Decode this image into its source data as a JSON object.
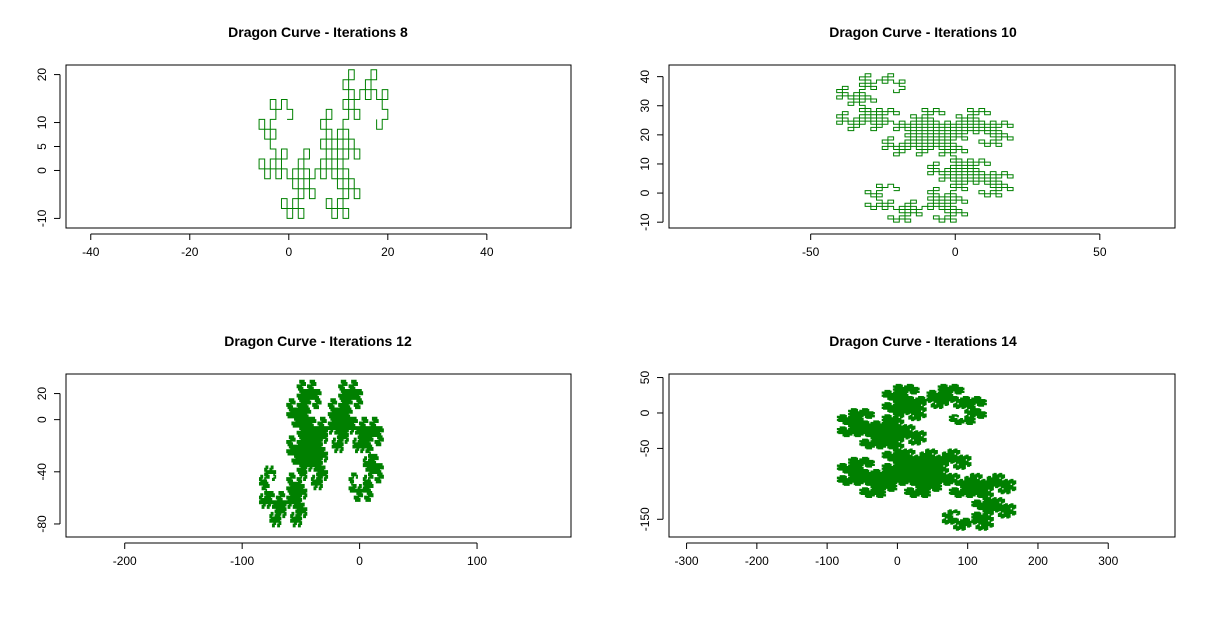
{
  "chart_data": [
    {
      "type": "line",
      "title": "Dragon Curve - Iterations 8",
      "iterations": 8,
      "color": "#008000",
      "xlim": [
        -45,
        57
      ],
      "ylim": [
        -12,
        22
      ],
      "xticks": [
        -40,
        -20,
        0,
        20,
        40
      ],
      "yticks": [
        -10,
        0,
        5,
        10,
        20
      ],
      "grid": false,
      "legend": "none"
    },
    {
      "type": "line",
      "title": "Dragon Curve - Iterations 10",
      "iterations": 10,
      "color": "#008000",
      "xlim": [
        -99,
        76
      ],
      "ylim": [
        -12,
        44
      ],
      "xticks": [
        -50,
        0,
        50
      ],
      "yticks": [
        -10,
        0,
        10,
        20,
        30,
        40
      ],
      "grid": false,
      "legend": "none"
    },
    {
      "type": "line",
      "title": "Dragon Curve - Iterations 12",
      "iterations": 12,
      "color": "#008000",
      "xlim": [
        -250,
        180
      ],
      "ylim": [
        -90,
        35
      ],
      "xticks": [
        -200,
        -100,
        0,
        100
      ],
      "yticks": [
        -80,
        -40,
        0,
        20
      ],
      "grid": false,
      "legend": "none"
    },
    {
      "type": "line",
      "title": "Dragon Curve - Iterations 14",
      "iterations": 14,
      "color": "#008000",
      "xlim": [
        -325,
        395
      ],
      "ylim": [
        -175,
        55
      ],
      "xticks": [
        -300,
        -200,
        -100,
        0,
        100,
        200,
        300
      ],
      "yticks": [
        -150,
        -50,
        0,
        50
      ],
      "grid": false,
      "legend": "none"
    }
  ]
}
